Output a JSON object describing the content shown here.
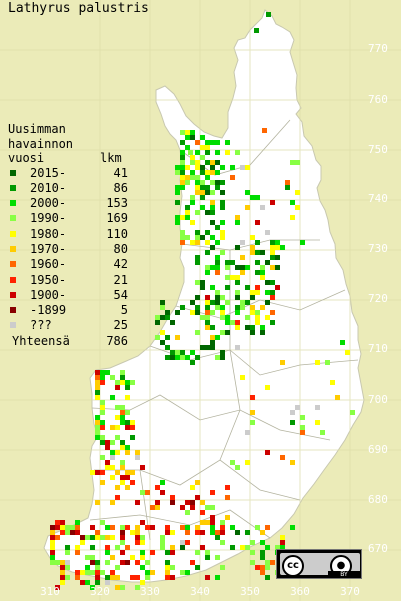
{
  "title": "Lathyrus palustris",
  "legend": {
    "heading": [
      "Uusimman",
      "havainnon",
      "vuosi"
    ],
    "count_header": "lkm",
    "rows": [
      {
        "label": "2015-",
        "count": "41",
        "color": "#006600"
      },
      {
        "label": "2010-",
        "count": "86",
        "color": "#009900"
      },
      {
        "label": "2000-",
        "count": "153",
        "color": "#00dd00"
      },
      {
        "label": "1990-",
        "count": "169",
        "color": "#88ff44"
      },
      {
        "label": "1980-",
        "count": "110",
        "color": "#ffff00"
      },
      {
        "label": "1970-",
        "count": "80",
        "color": "#ffcc00"
      },
      {
        "label": "1960-",
        "count": "42",
        "color": "#ff6600"
      },
      {
        "label": "1950-",
        "count": "21",
        "color": "#ff2200"
      },
      {
        "label": "1900-",
        "count": "54",
        "color": "#cc0000"
      },
      {
        "label": "-1899",
        "count": "5",
        "color": "#880000"
      },
      {
        "label": "???",
        "count": "25",
        "color": "#cccccc"
      }
    ],
    "total_label": "Yhteensä",
    "total": "786"
  },
  "axis": {
    "y_ticks": [
      "770",
      "760",
      "750",
      "740",
      "730",
      "720",
      "710",
      "700",
      "690",
      "680",
      "670"
    ],
    "x_ticks": [
      "310",
      "320",
      "330",
      "340",
      "350",
      "360",
      "370"
    ]
  },
  "license": {
    "cc": "cc",
    "by": "BY"
  },
  "colors": {
    "background": "#ebebb8",
    "land": "#ffffff",
    "grid": "#dcdca8",
    "border": "#b4b4a0"
  }
}
